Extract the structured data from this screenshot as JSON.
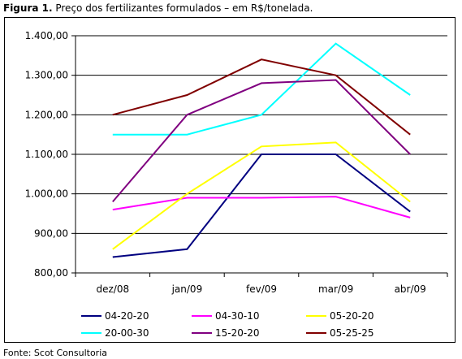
{
  "figure": {
    "label": "Figura 1.",
    "caption": " Preço dos fertilizantes formulados – em R$/tonelada.",
    "source": "Fonte: Scot Consultoria"
  },
  "chart_data": {
    "type": "line",
    "title": "",
    "xlabel": "",
    "ylabel": "",
    "categories": [
      "dez/08",
      "jan/09",
      "fev/09",
      "mar/09",
      "abr/09"
    ],
    "ylim": [
      800,
      1400
    ],
    "yticks": [
      800,
      900,
      1000,
      1100,
      1200,
      1300,
      1400
    ],
    "ytick_labels": [
      "800,00",
      "900,00",
      "1.000,00",
      "1.100,00",
      "1.200,00",
      "1.300,00",
      "1.400,00"
    ],
    "grid": "horizontal",
    "legend_position": "bottom",
    "series": [
      {
        "name": "04-20-20",
        "color": "#000080",
        "values": [
          840,
          860,
          1100,
          1100,
          955
        ]
      },
      {
        "name": "04-30-10",
        "color": "#ff00ff",
        "values": [
          960,
          990,
          990,
          993,
          940
        ]
      },
      {
        "name": "05-20-20",
        "color": "#ffff00",
        "values": [
          860,
          1000,
          1120,
          1130,
          980
        ]
      },
      {
        "name": "20-00-30",
        "color": "#00ffff",
        "values": [
          1150,
          1150,
          1200,
          1380,
          1250
        ]
      },
      {
        "name": "15-20-20",
        "color": "#800080",
        "values": [
          980,
          1200,
          1280,
          1288,
          1100
        ]
      },
      {
        "name": "05-25-25",
        "color": "#800000",
        "values": [
          1200,
          1250,
          1340,
          1300,
          1150
        ]
      }
    ]
  }
}
